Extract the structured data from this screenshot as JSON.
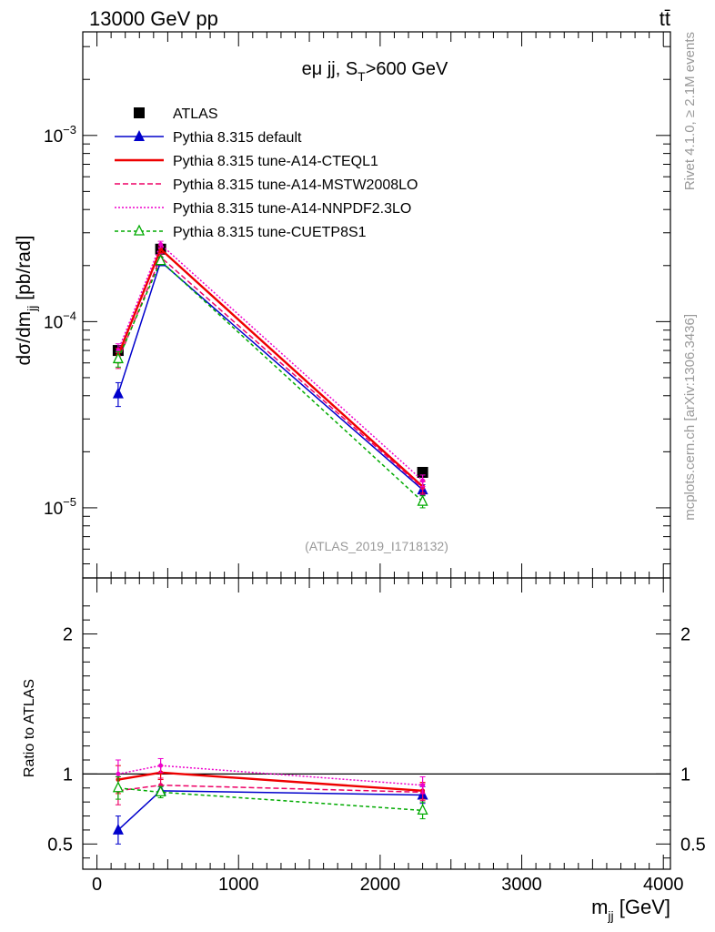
{
  "header": {
    "left_title": "13000 GeV pp",
    "right_title": "tt̄",
    "annotation": "eμ jj, S",
    "annotation_sub": "T",
    "annotation_tail": ">600 GeV",
    "watermark": "(ATLAS_2019_I1718132)",
    "side_rivet": "Rivet 4.1.0, ≥ 2.1M events",
    "side_mcplots": "mcplots.cern.ch [arXiv:1306.3436]"
  },
  "chart_data": [
    {
      "type": "line",
      "scale": "log",
      "ylabel": "dσ/dm",
      "ylabel_sub": "jj",
      "ylabel_tail": " [pb/rad]",
      "ylim": [
        4.2e-06,
        0.0036
      ],
      "y_tick_labels": [
        {
          "value": 0.001,
          "base": "10",
          "exp": "−3"
        },
        {
          "value": 0.0001,
          "base": "10",
          "exp": "−4"
        },
        {
          "value": 1e-05,
          "base": "10",
          "exp": "−5"
        }
      ],
      "x": [
        150,
        450,
        2300
      ],
      "series": [
        {
          "name": "ATLAS",
          "values": [
            7e-05,
            0.000245,
            1.55e-05
          ],
          "errors": [
            0,
            0,
            0
          ],
          "color": "#000000",
          "dash": "",
          "marker": "square",
          "role": "data"
        },
        {
          "name": "Pythia 8.315 default",
          "values": [
            4.1e-05,
            0.00021,
            1.25e-05
          ],
          "errors": [
            6e-06,
            1e-05,
            8e-07
          ],
          "color": "#0000cc",
          "dash": "",
          "marker": "triangle"
        },
        {
          "name": "Pythia 8.315 tune-A14-CTEQL1",
          "values": [
            6.6e-05,
            0.000245,
            1.3e-05
          ],
          "errors": [
            6e-06,
            1e-05,
            1e-06
          ],
          "color": "#ee0000",
          "dash": "",
          "marker": "none"
        },
        {
          "name": "Pythia 8.315 tune-A14-MSTW2008LO",
          "values": [
            6.2e-05,
            0.000222,
            1.28e-05
          ],
          "errors": [
            6e-06,
            1e-05,
            1e-06
          ],
          "color": "#ee0066",
          "dash": "6,3",
          "marker": "none"
        },
        {
          "name": "Pythia 8.315 tune-A14-NNPDF2.3LO",
          "values": [
            7e-05,
            0.00026,
            1.4e-05
          ],
          "errors": [
            6e-06,
            1e-05,
            1e-06
          ],
          "color": "#ee00cc",
          "dash": "2,2",
          "marker": "none"
        },
        {
          "name": "Pythia 8.315 tune-CUETP8S1",
          "values": [
            6.3e-05,
            0.000212,
            1.08e-05
          ],
          "errors": [
            6e-06,
            1e-05,
            8e-07
          ],
          "color": "#00aa00",
          "dash": "4,3",
          "marker": "open-triangle"
        }
      ]
    },
    {
      "type": "line",
      "ylabel": "Ratio to ATLAS",
      "xlabel": "m",
      "xlabel_sub": "jj",
      "xlabel_tail": " [GeV]",
      "ylim": [
        0.32,
        2.4
      ],
      "xlim": [
        -100,
        4050
      ],
      "x_tick_labels": [
        "0",
        "1000",
        "2000",
        "3000",
        "4000"
      ],
      "y_tick_labels": [
        "0.5",
        "1",
        "2"
      ],
      "x": [
        150,
        450,
        2300
      ],
      "series": [
        {
          "name": "Pythia 8.315 default",
          "values": [
            0.6,
            0.88,
            0.85
          ],
          "errors": [
            0.1,
            0.03,
            0.06
          ],
          "color": "#0000cc",
          "dash": "",
          "marker": "triangle"
        },
        {
          "name": "Pythia 8.315 tune-A14-CTEQL1",
          "values": [
            0.96,
            1.01,
            0.88
          ],
          "errors": [
            0.1,
            0.05,
            0.06
          ],
          "color": "#ee0000",
          "dash": "",
          "marker": "none"
        },
        {
          "name": "Pythia 8.315 tune-A14-MSTW2008LO",
          "values": [
            0.88,
            0.92,
            0.87
          ],
          "errors": [
            0.1,
            0.05,
            0.06
          ],
          "color": "#ee0066",
          "dash": "6,3",
          "marker": "none"
        },
        {
          "name": "Pythia 8.315 tune-A14-NNPDF2.3LO",
          "values": [
            1.0,
            1.06,
            0.92
          ],
          "errors": [
            0.1,
            0.05,
            0.06
          ],
          "color": "#ee00cc",
          "dash": "2,2",
          "marker": "none"
        },
        {
          "name": "Pythia 8.315 tune-CUETP8S1",
          "values": [
            0.9,
            0.87,
            0.74
          ],
          "errors": [
            0.08,
            0.04,
            0.06
          ],
          "color": "#00aa00",
          "dash": "4,3",
          "marker": "open-triangle"
        }
      ]
    }
  ]
}
